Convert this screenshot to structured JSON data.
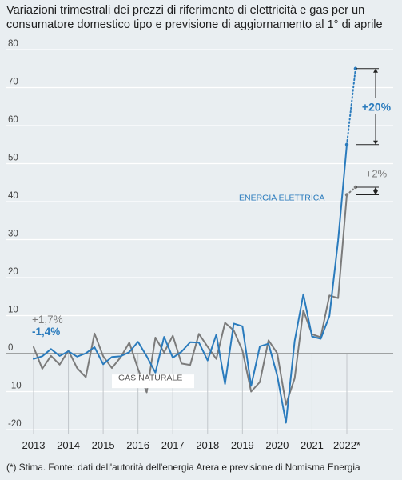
{
  "title": "Variazioni trimestrali dei prezzi di riferimento di elettricità e gas per un consumatore domestico tipo e previsione di aggiornamento al 1° di aprile",
  "footnote": "(*) Stima. Fonte: dati dell'autorità dell'energia Arera e previsione di Nomisma Energia",
  "colors": {
    "electricity": "#2a7bbd",
    "gas": "#7b7b7b",
    "background": "#e9eef1",
    "grid": "#ffffff"
  },
  "chart_data": {
    "type": "line",
    "title": "",
    "xlabel": "",
    "ylabel": "",
    "ylim": [
      -20,
      80
    ],
    "yticks": [
      80,
      70,
      60,
      50,
      40,
      30,
      20,
      10,
      0,
      -10,
      -20
    ],
    "year_labels": [
      "2013",
      "2014",
      "2015",
      "2016",
      "2017",
      "2018",
      "2019",
      "2020",
      "2021",
      "2022*"
    ],
    "grid": true,
    "series": [
      {
        "name": "ENERGIA ELETTRICA",
        "color": "#2a7bbd",
        "x": [
          2013.0,
          2013.25,
          2013.5,
          2013.75,
          2014.0,
          2014.25,
          2014.5,
          2014.75,
          2015.0,
          2015.25,
          2015.5,
          2015.75,
          2016.0,
          2016.25,
          2016.5,
          2016.75,
          2017.0,
          2017.25,
          2017.5,
          2017.75,
          2018.0,
          2018.25,
          2018.5,
          2018.75,
          2019.0,
          2019.25,
          2019.5,
          2019.75,
          2020.0,
          2020.25,
          2020.5,
          2020.75,
          2021.0,
          2021.25,
          2021.5,
          2021.75,
          2022.0
        ],
        "values": [
          -1.4,
          -0.7,
          1.2,
          -0.6,
          0.6,
          -0.8,
          0.1,
          1.7,
          -2.8,
          -0.9,
          -0.7,
          0.4,
          3.1,
          -0.7,
          -5.0,
          4.4,
          -1.1,
          0.5,
          3.0,
          2.9,
          -1.8,
          5.0,
          -8.0,
          7.9,
          7.2,
          -8.5,
          1.9,
          2.6,
          -5.8,
          -18.2,
          3.3,
          15.6,
          4.5,
          3.9,
          9.9,
          29.8,
          55.0
        ],
        "forecast": {
          "x": 2022.25,
          "value": 75.0
        }
      },
      {
        "name": "GAS NATURALE",
        "color": "#7b7b7b",
        "x": [
          2013.0,
          2013.25,
          2013.5,
          2013.75,
          2014.0,
          2014.25,
          2014.5,
          2014.75,
          2015.0,
          2015.25,
          2015.5,
          2015.75,
          2016.0,
          2016.25,
          2016.5,
          2016.75,
          2017.0,
          2017.25,
          2017.5,
          2017.75,
          2018.0,
          2018.25,
          2018.5,
          2018.75,
          2019.0,
          2019.25,
          2019.5,
          2019.75,
          2020.0,
          2020.25,
          2020.5,
          2020.75,
          2021.0,
          2021.25,
          2021.5,
          2021.75,
          2022.0
        ],
        "values": [
          1.7,
          -4.0,
          -0.6,
          -2.9,
          0.8,
          -3.8,
          -6.2,
          5.3,
          -0.7,
          -3.8,
          -1.0,
          2.9,
          -4.0,
          -10.2,
          4.2,
          0.3,
          4.7,
          -2.6,
          -3.0,
          5.2,
          1.8,
          -1.4,
          8.1,
          6.1,
          0.8,
          -10.0,
          -7.5,
          3.5,
          0.1,
          -13.4,
          -6.5,
          11.4,
          5.1,
          4.3,
          15.3,
          14.6,
          41.8
        ],
        "forecast": {
          "x": 2022.25,
          "value": 43.8
        }
      }
    ],
    "annotations": {
      "gas_start": "+1,7%",
      "elec_start": "-1,4%",
      "elec_forecast": "+20%",
      "gas_forecast": "+2%",
      "elec_label": "ENERGIA ELETTRICA",
      "gas_label": "GAS NATURALE"
    }
  }
}
